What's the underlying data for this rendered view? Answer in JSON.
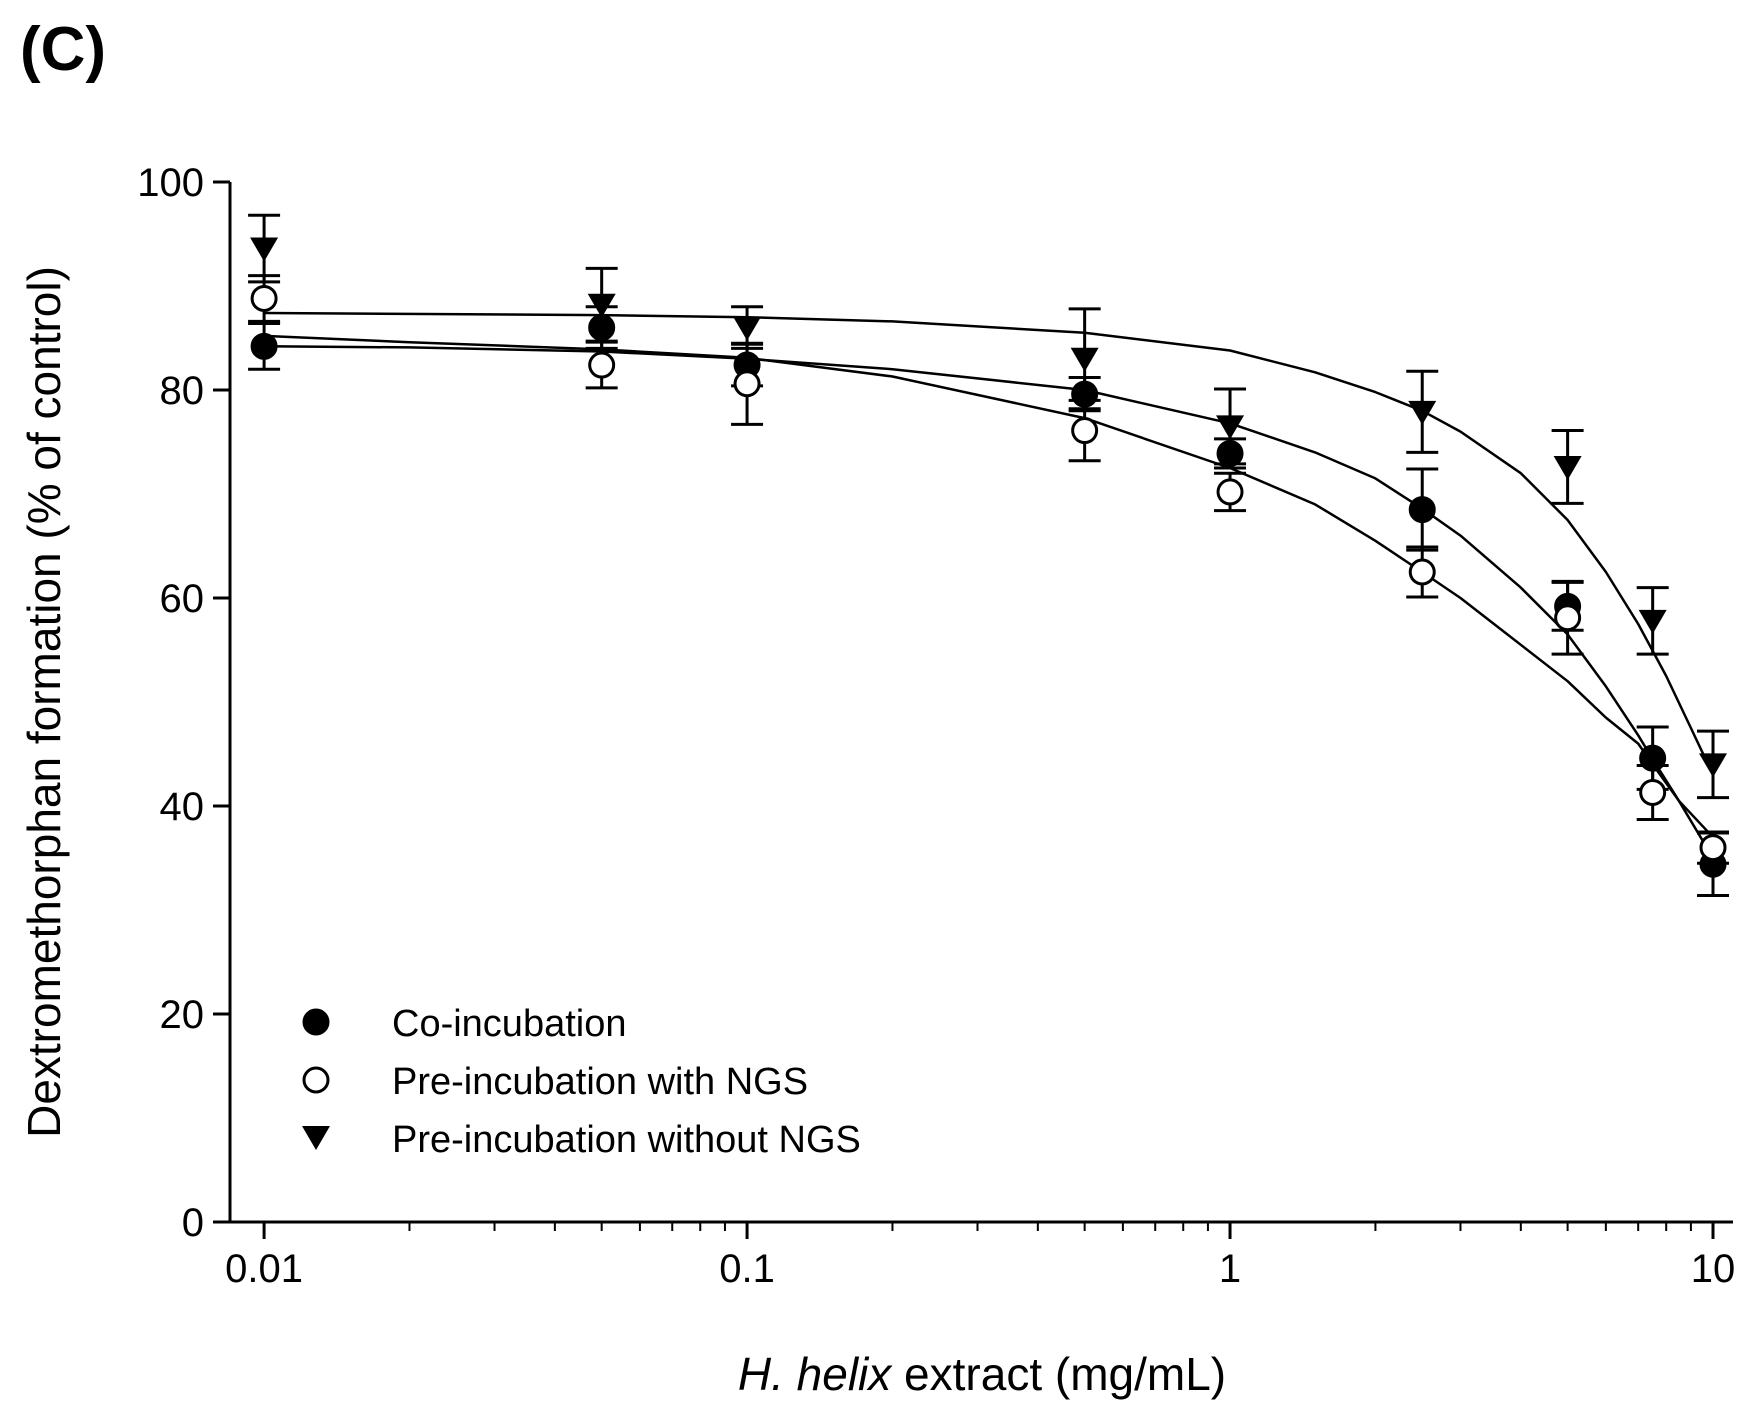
{
  "panel_label": "(C)",
  "chart_data": {
    "type": "scatter",
    "xscale": "log",
    "xlim": [
      0.0085,
      11
    ],
    "ylim": [
      0,
      100
    ],
    "xticks": [
      0.01,
      0.1,
      1,
      10
    ],
    "xtick_labels": [
      "0.01",
      "0.1",
      "1",
      "10"
    ],
    "yticks": [
      0,
      20,
      40,
      60,
      80,
      100
    ],
    "ytick_labels": [
      "0",
      "20",
      "40",
      "60",
      "80",
      "100"
    ],
    "xlabel_italic": "H. helix",
    "xlabel_rest": " extract (mg/mL)",
    "ylabel": "Dextromethorphan formation (% of control)",
    "legend_position": "bottom-left",
    "x": [
      0.01,
      0.05,
      0.1,
      0.5,
      1,
      2.5,
      5,
      7.5,
      10
    ],
    "series": [
      {
        "name": "Co-incubation",
        "marker": "filled-circle",
        "values": [
          84.2,
          86.0,
          82.4,
          79.6,
          73.9,
          68.5,
          59.2,
          44.6,
          34.4
        ],
        "errors": [
          2.2,
          2.0,
          2.0,
          1.6,
          1.4,
          3.9,
          2.3,
          3.0,
          3.0
        ],
        "fit": [
          [
            0.01,
            84.2
          ],
          [
            0.02,
            84.1
          ],
          [
            0.05,
            83.7
          ],
          [
            0.1,
            83.0
          ],
          [
            0.2,
            82.0
          ],
          [
            0.5,
            80.0
          ],
          [
            1,
            76.8
          ],
          [
            1.5,
            74.0
          ],
          [
            2,
            71.5
          ],
          [
            2.5,
            68.6
          ],
          [
            3,
            66.0
          ],
          [
            4,
            61.0
          ],
          [
            5,
            56.5
          ],
          [
            6,
            51.5
          ],
          [
            7,
            46.8
          ],
          [
            7.5,
            44.5
          ],
          [
            8.5,
            40.5
          ],
          [
            10,
            35.0
          ]
        ]
      },
      {
        "name": "Pre-incubation with NGS",
        "marker": "open-circle",
        "values": [
          88.8,
          82.4,
          80.6,
          76.1,
          70.2,
          62.5,
          58.1,
          41.3,
          36.0
        ],
        "errors": [
          2.2,
          2.2,
          3.9,
          2.9,
          1.8,
          2.4,
          3.5,
          2.6,
          1.5
        ],
        "fit": [
          [
            0.01,
            85.2
          ],
          [
            0.02,
            84.6
          ],
          [
            0.05,
            83.9
          ],
          [
            0.1,
            83.1
          ],
          [
            0.2,
            81.3
          ],
          [
            0.5,
            77.3
          ],
          [
            1,
            72.5
          ],
          [
            1.5,
            69.0
          ],
          [
            2,
            65.5
          ],
          [
            2.5,
            62.5
          ],
          [
            3,
            60.0
          ],
          [
            4,
            55.5
          ],
          [
            5,
            52.0
          ],
          [
            6,
            48.5
          ],
          [
            7,
            46.0
          ],
          [
            7.5,
            44.0
          ],
          [
            8.5,
            40.5
          ],
          [
            10,
            37.0
          ]
        ]
      },
      {
        "name": "Pre-incubation without NGS",
        "marker": "filled-triangle-down",
        "values": [
          93.6,
          88.2,
          86.0,
          83.0,
          76.5,
          77.9,
          72.6,
          57.8,
          44.0
        ],
        "errors": [
          3.2,
          3.5,
          2.0,
          4.8,
          3.6,
          3.9,
          3.5,
          3.2,
          3.2
        ],
        "fit": [
          [
            0.01,
            87.4
          ],
          [
            0.05,
            87.2
          ],
          [
            0.1,
            87.0
          ],
          [
            0.2,
            86.6
          ],
          [
            0.5,
            85.5
          ],
          [
            1,
            83.8
          ],
          [
            1.5,
            81.7
          ],
          [
            2,
            79.8
          ],
          [
            2.5,
            78.0
          ],
          [
            3,
            76.0
          ],
          [
            4,
            72.0
          ],
          [
            5,
            67.5
          ],
          [
            6,
            62.5
          ],
          [
            7,
            57.5
          ],
          [
            8,
            52.5
          ],
          [
            9,
            47.5
          ],
          [
            10,
            43.0
          ]
        ]
      }
    ]
  }
}
